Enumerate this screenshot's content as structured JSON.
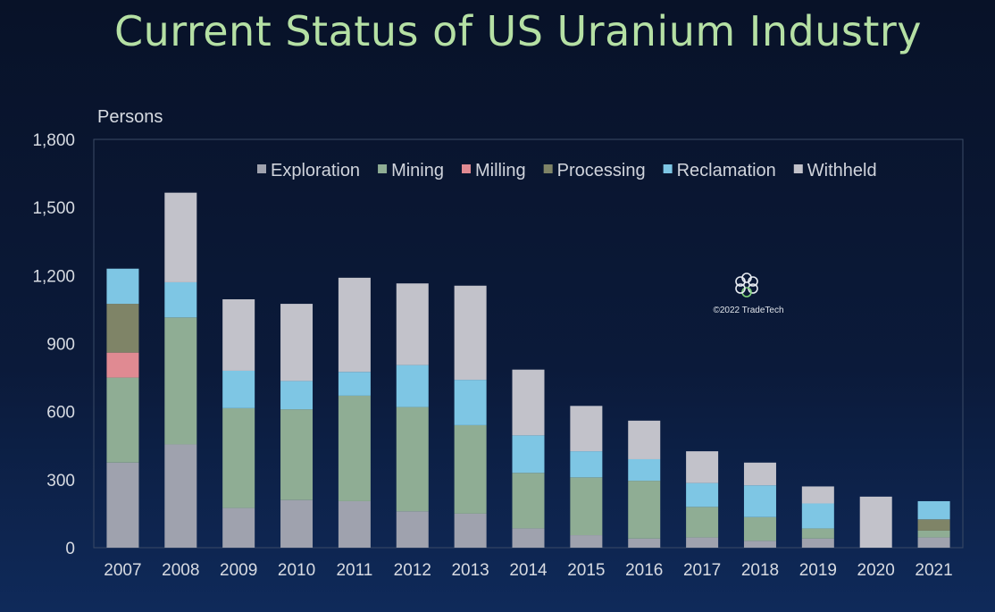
{
  "chart_data": {
    "type": "bar",
    "stacked": true,
    "title": "Current Status of US Uranium Industry",
    "ylabel": "Persons",
    "xlabel": "",
    "ylim": [
      0,
      1800
    ],
    "yticks": [
      0,
      300,
      600,
      900,
      1200,
      1500,
      1800
    ],
    "ytick_labels": [
      "0",
      "300",
      "600",
      "900",
      "1,200",
      "1,500",
      "1,800"
    ],
    "categories": [
      "2007",
      "2008",
      "2009",
      "2010",
      "2011",
      "2012",
      "2013",
      "2014",
      "2015",
      "2016",
      "2017",
      "2018",
      "2019",
      "2020",
      "2021"
    ],
    "legend_position": "top-right",
    "grid": false,
    "series": [
      {
        "name": "Exploration",
        "color": "#9fa2ae",
        "values": [
          375,
          455,
          175,
          210,
          205,
          160,
          150,
          85,
          55,
          40,
          45,
          30,
          40,
          0,
          45
        ]
      },
      {
        "name": "Mining",
        "color": "#8fad94",
        "values": [
          375,
          560,
          440,
          400,
          465,
          460,
          390,
          245,
          255,
          255,
          135,
          105,
          45,
          0,
          30
        ]
      },
      {
        "name": "Milling",
        "color": "#e08a92",
        "values": [
          110,
          0,
          0,
          0,
          0,
          0,
          0,
          0,
          0,
          0,
          0,
          0,
          0,
          0,
          0
        ]
      },
      {
        "name": "Processing",
        "color": "#7f8467",
        "values": [
          215,
          0,
          0,
          0,
          0,
          0,
          0,
          0,
          0,
          0,
          0,
          0,
          0,
          0,
          50
        ]
      },
      {
        "name": "Reclamation",
        "color": "#7ec6e4",
        "values": [
          155,
          155,
          165,
          125,
          105,
          185,
          200,
          165,
          115,
          95,
          105,
          140,
          110,
          0,
          80
        ]
      },
      {
        "name": "Withheld",
        "color": "#c2c2ca",
        "values": [
          0,
          395,
          315,
          340,
          415,
          360,
          415,
          290,
          200,
          170,
          140,
          100,
          75,
          225,
          0
        ]
      }
    ],
    "annotations": [
      "©2022 TradeTech"
    ]
  },
  "watermark": {
    "text": "©2022 TradeTech"
  }
}
